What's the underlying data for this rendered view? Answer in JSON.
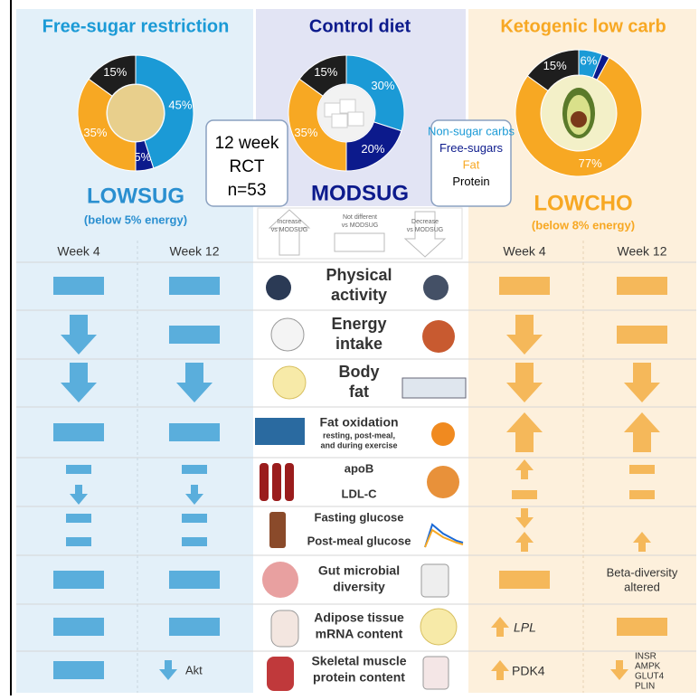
{
  "panels": [
    {
      "title": "Free-sugar restriction",
      "group": "LOWSUG",
      "note": "(below 5% energy)"
    },
    {
      "title": "Control diet",
      "group": "MODSUG"
    },
    {
      "title": "Ketogenic low carb",
      "group": "LOWCHO",
      "note": "(below 8% energy)"
    }
  ],
  "donuts": [
    {
      "segments": [
        {
          "value": 45,
          "label": "45%",
          "color": "#1b9ad6"
        },
        {
          "value": 5,
          "label": "5%",
          "color": "#0c1a8c"
        },
        {
          "value": 35,
          "label": "35%",
          "color": "#f7a823"
        },
        {
          "value": 15,
          "label": "15%",
          "color": "#1e1e1e"
        }
      ]
    },
    {
      "segments": [
        {
          "value": 30,
          "label": "30%",
          "color": "#1b9ad6"
        },
        {
          "value": 20,
          "label": "20%",
          "color": "#0c1a8c"
        },
        {
          "value": 35,
          "label": "35%",
          "color": "#f7a823"
        },
        {
          "value": 15,
          "label": "15%",
          "color": "#1e1e1e"
        }
      ]
    },
    {
      "segments": [
        {
          "value": 6,
          "label": "6%",
          "color": "#1b9ad6"
        },
        {
          "value": 2,
          "label": null,
          "color": "#0c1a8c"
        },
        {
          "value": 77,
          "label": "77%",
          "color": "#f7a823"
        },
        {
          "value": 15,
          "label": "15%",
          "color": "#1e1e1e"
        }
      ]
    }
  ],
  "study": [
    "12 week",
    "RCT",
    "n=53"
  ],
  "legend": [
    {
      "text": "Non-sugar carbs",
      "color": "#1b9ad6"
    },
    {
      "text": "Free-sugars",
      "color": "#0c1a8c"
    },
    {
      "text": "Fat",
      "color": "#f7a823"
    },
    {
      "text": "Protein",
      "color": "#000000"
    }
  ],
  "key": [
    [
      "Increase",
      "vs MODSUG"
    ],
    [
      "Not different",
      "vs MODSUG"
    ],
    [
      "Decrease",
      "vs MODSUG"
    ]
  ],
  "weeks": [
    "Week 4",
    "Week 12",
    "Week 4",
    "Week 12"
  ],
  "rows": [
    {
      "lines": [
        "Physical",
        "activity"
      ]
    },
    {
      "lines": [
        "Energy",
        "intake"
      ]
    },
    {
      "lines": [
        "Body",
        "fat"
      ]
    },
    {
      "lines": [
        "Fat oxidation"
      ],
      "sub": [
        "resting, post-meal,",
        "and during exercise"
      ]
    },
    {
      "lines": [
        "apoB"
      ]
    },
    {
      "lines": [
        "LDL-C"
      ]
    },
    {
      "lines": [
        "Fasting glucose"
      ]
    },
    {
      "lines": [
        "Post-meal glucose"
      ]
    },
    {
      "lines": [
        "Gut microbial",
        "diversity"
      ]
    },
    {
      "lines": [
        "Adipose tissue",
        "mRNA content"
      ]
    },
    {
      "lines": [
        "Skeletal muscle",
        "protein content"
      ]
    }
  ],
  "cell_notes": [
    [
      "Beta-diversity",
      "altered"
    ],
    [
      "LPL"
    ],
    [
      "Akt"
    ],
    [
      "PDK4"
    ],
    [
      "INSR",
      "AMPK",
      "GLUT4",
      "PLIN"
    ]
  ]
}
